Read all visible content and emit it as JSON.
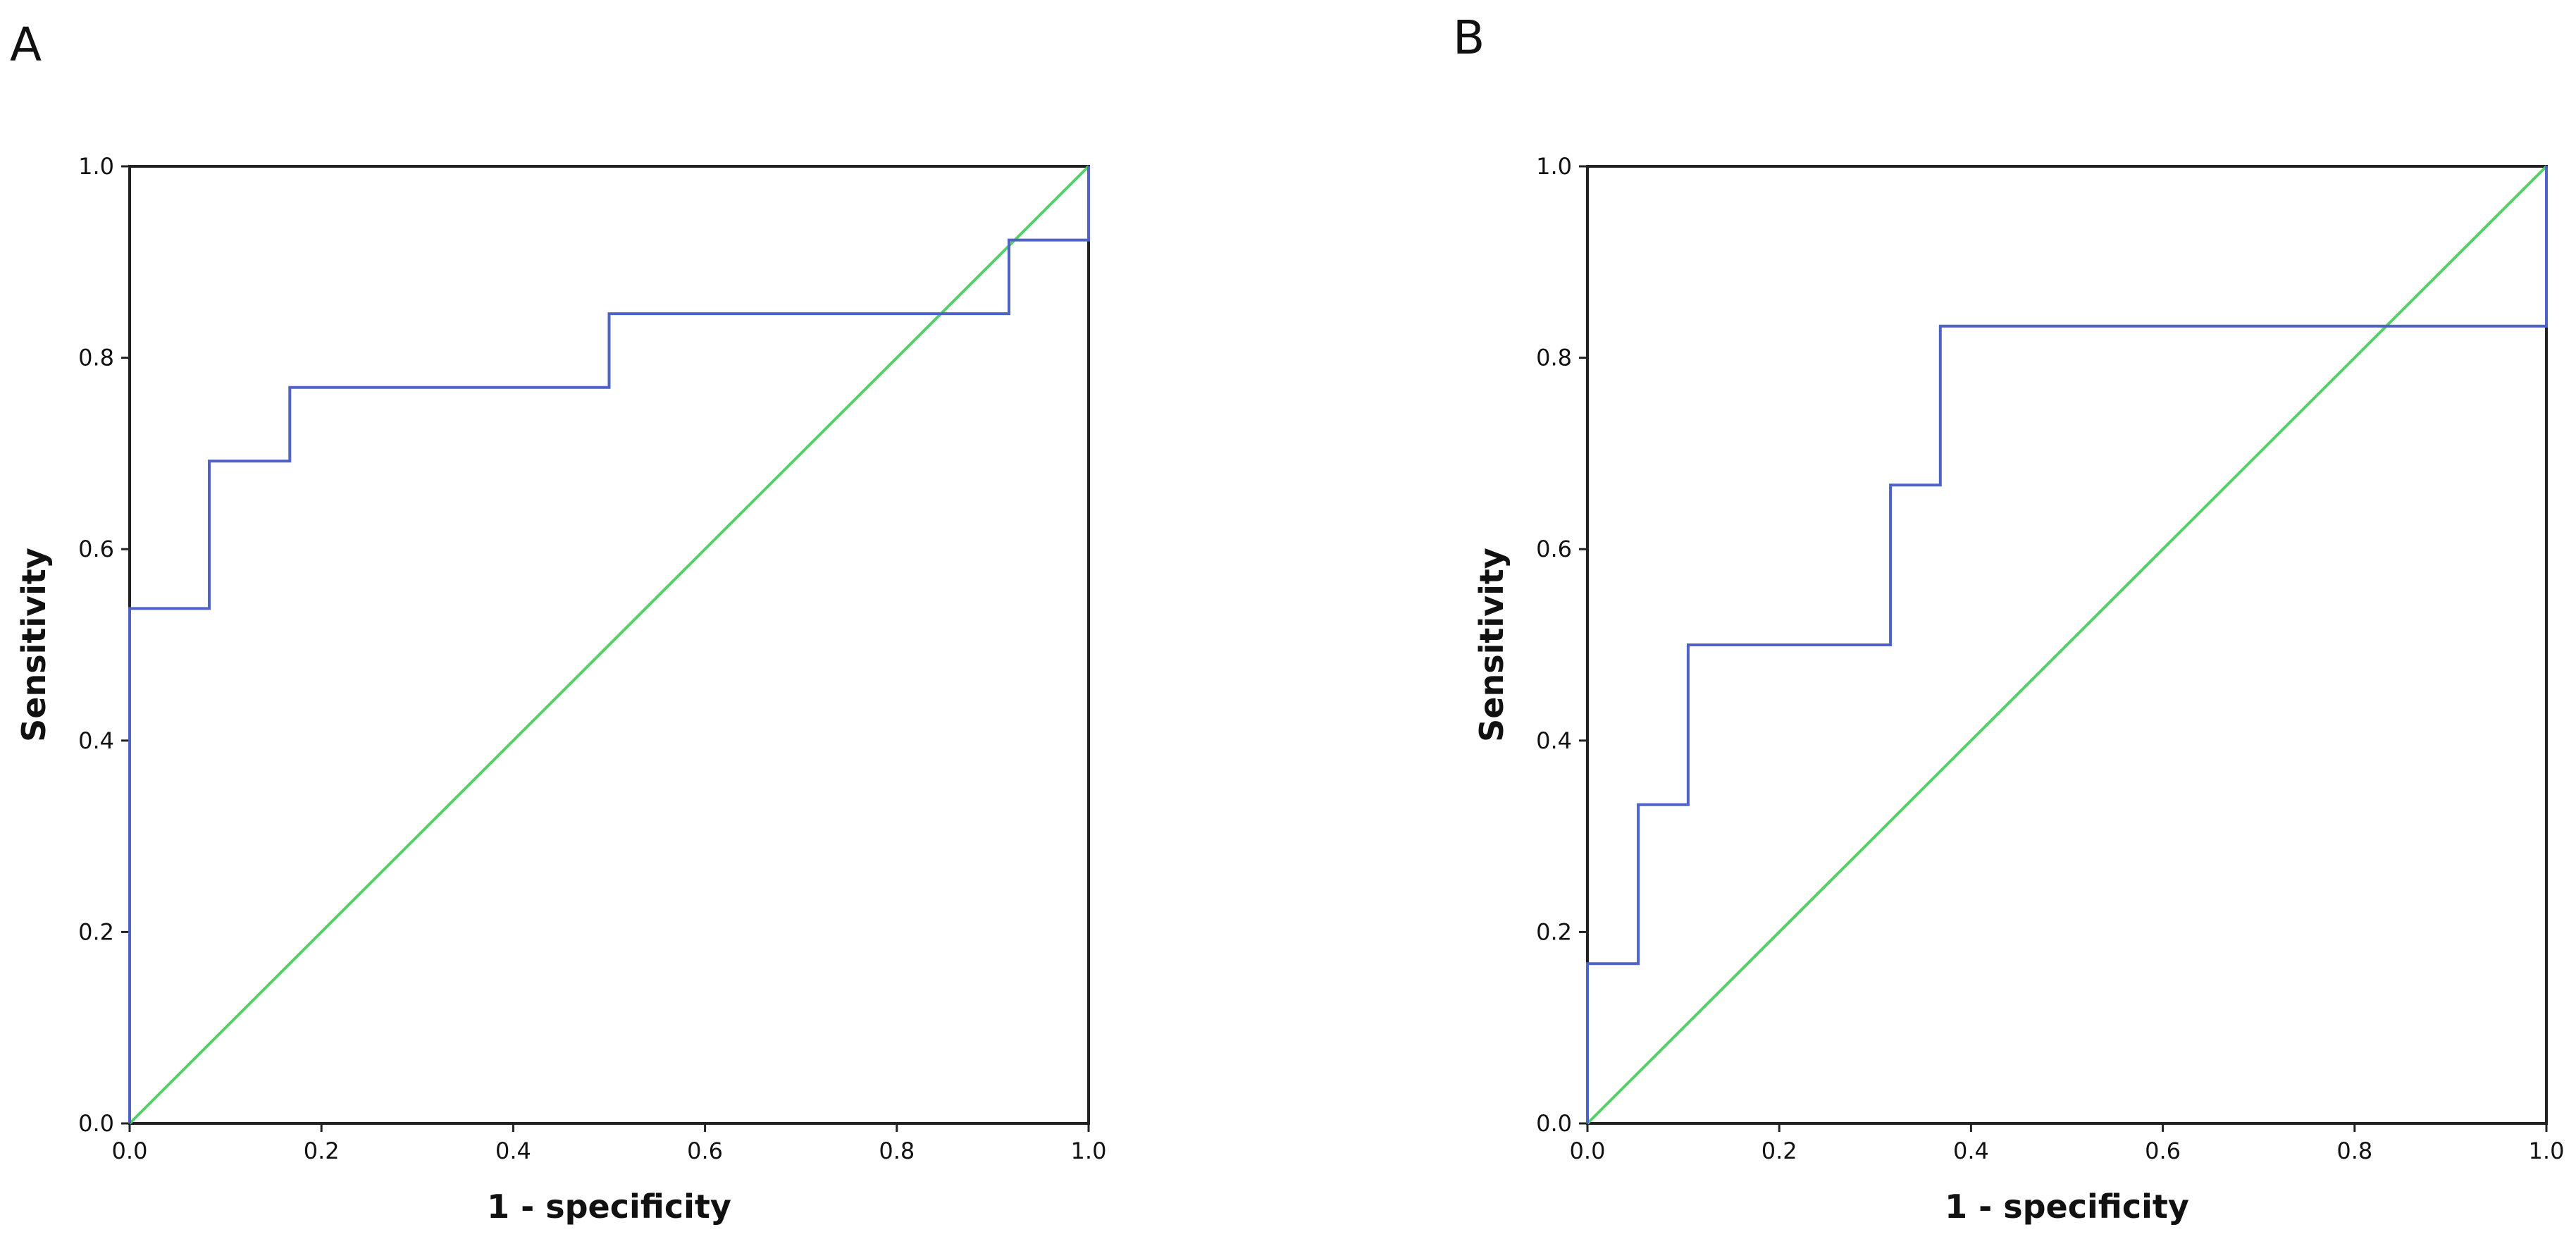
{
  "chart_data": [
    {
      "panel": "A",
      "type": "line",
      "title": "",
      "xlabel": "1 - specificity",
      "ylabel": "Sensitivity",
      "xlim": [
        0,
        1
      ],
      "ylim": [
        0,
        1
      ],
      "x_ticks": [
        "0.0",
        "0.2",
        "0.4",
        "0.6",
        "0.8",
        "1.0"
      ],
      "y_ticks": [
        "0.0",
        "0.2",
        "0.4",
        "0.6",
        "0.8",
        "1.0"
      ],
      "grid": false,
      "legend": "none",
      "series": [
        {
          "name": "ROC curve",
          "color": "#4f63c6",
          "step": true,
          "x": [
            0.0,
            0.0,
            0.083,
            0.083,
            0.167,
            0.167,
            0.5,
            0.5,
            0.917,
            0.917,
            1.0,
            1.0
          ],
          "y": [
            0.0,
            0.538,
            0.538,
            0.692,
            0.692,
            0.769,
            0.769,
            0.846,
            0.846,
            0.923,
            0.923,
            1.0
          ]
        },
        {
          "name": "Reference line",
          "color": "#55d067",
          "x": [
            0,
            1
          ],
          "y": [
            0,
            1
          ]
        }
      ]
    },
    {
      "panel": "B",
      "type": "line",
      "title": "",
      "xlabel": "1 - specificity",
      "ylabel": "Sensitivity",
      "xlim": [
        0,
        1
      ],
      "ylim": [
        0,
        1
      ],
      "x_ticks": [
        "0.0",
        "0.2",
        "0.4",
        "0.6",
        "0.8",
        "1.0"
      ],
      "y_ticks": [
        "0.0",
        "0.2",
        "0.4",
        "0.6",
        "0.8",
        "1.0"
      ],
      "grid": false,
      "legend": "none",
      "series": [
        {
          "name": "ROC curve",
          "color": "#4f63c6",
          "step": true,
          "x": [
            0.0,
            0.0,
            0.053,
            0.053,
            0.105,
            0.105,
            0.316,
            0.316,
            0.368,
            0.368,
            1.0,
            1.0
          ],
          "y": [
            0.0,
            0.167,
            0.167,
            0.333,
            0.333,
            0.5,
            0.5,
            0.667,
            0.667,
            0.833,
            0.833,
            1.0
          ]
        },
        {
          "name": "Reference line",
          "color": "#55d067",
          "x": [
            0,
            1
          ],
          "y": [
            0,
            1
          ]
        }
      ]
    }
  ]
}
